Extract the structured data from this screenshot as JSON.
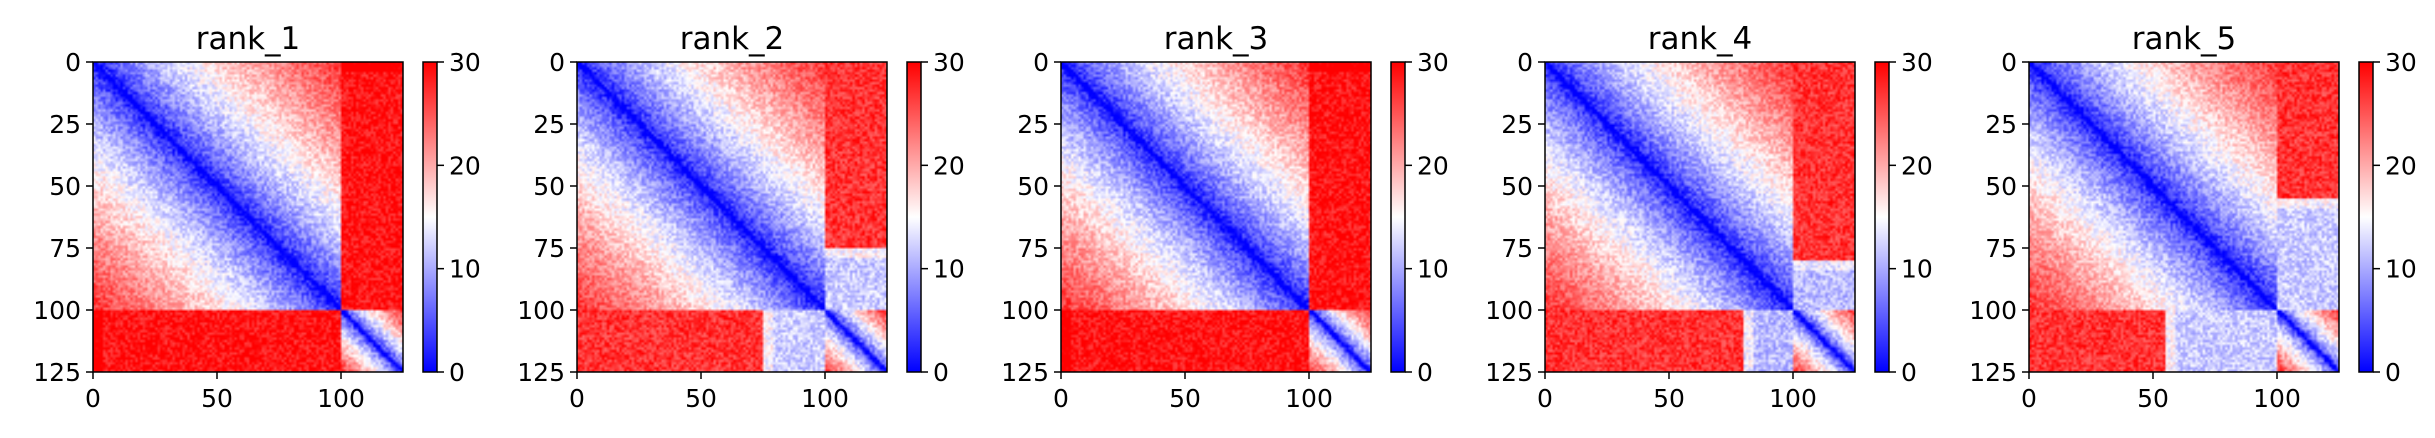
{
  "chart_data": [
    {
      "type": "heatmap",
      "title": "rank_1",
      "x": {
        "range": [
          0,
          125
        ],
        "ticks": [
          0,
          50,
          100
        ]
      },
      "y": {
        "range": [
          0,
          125
        ],
        "ticks": [
          0,
          25,
          50,
          75,
          100,
          125
        ],
        "inverted": true
      },
      "colorbar": {
        "range": [
          0,
          30
        ],
        "ticks": [
          0,
          10,
          20,
          30
        ],
        "colors": [
          "#0000ff",
          "#ffffff",
          "#ff0000"
        ]
      },
      "domains": [
        {
          "start": 0,
          "end": 100
        },
        {
          "start": 100,
          "end": 125
        }
      ],
      "partial_off_diagonal": {
        "rows": [
          100,
          125
        ],
        "cols": [
          0,
          100
        ],
        "value": 29
      }
    },
    {
      "type": "heatmap",
      "title": "rank_2",
      "x": {
        "range": [
          0,
          125
        ],
        "ticks": [
          0,
          50,
          100
        ]
      },
      "y": {
        "range": [
          0,
          125
        ],
        "ticks": [
          0,
          25,
          50,
          75,
          100,
          125
        ],
        "inverted": true
      },
      "colorbar": {
        "range": [
          0,
          30
        ],
        "ticks": [
          0,
          10,
          20,
          30
        ],
        "colors": [
          "#0000ff",
          "#ffffff",
          "#ff0000"
        ]
      },
      "domains": [
        {
          "start": 0,
          "end": 100
        },
        {
          "start": 100,
          "end": 125
        }
      ],
      "partial_off_diagonal": {
        "rows": [
          100,
          125
        ],
        "cols": [
          75,
          100
        ],
        "value": 12
      }
    },
    {
      "type": "heatmap",
      "title": "rank_3",
      "x": {
        "range": [
          0,
          125
        ],
        "ticks": [
          0,
          50,
          100
        ]
      },
      "y": {
        "range": [
          0,
          125
        ],
        "ticks": [
          0,
          25,
          50,
          75,
          100,
          125
        ],
        "inverted": true
      },
      "colorbar": {
        "range": [
          0,
          30
        ],
        "ticks": [
          0,
          10,
          20,
          30
        ],
        "colors": [
          "#0000ff",
          "#ffffff",
          "#ff0000"
        ]
      },
      "domains": [
        {
          "start": 0,
          "end": 100
        },
        {
          "start": 100,
          "end": 125
        }
      ],
      "partial_off_diagonal": {
        "rows": [
          100,
          125
        ],
        "cols": [
          0,
          100
        ],
        "value": 29
      }
    },
    {
      "type": "heatmap",
      "title": "rank_4",
      "x": {
        "range": [
          0,
          125
        ],
        "ticks": [
          0,
          50,
          100
        ]
      },
      "y": {
        "range": [
          0,
          125
        ],
        "ticks": [
          0,
          25,
          50,
          75,
          100,
          125
        ],
        "inverted": true
      },
      "colorbar": {
        "range": [
          0,
          30
        ],
        "ticks": [
          0,
          10,
          20,
          30
        ],
        "colors": [
          "#0000ff",
          "#ffffff",
          "#ff0000"
        ]
      },
      "domains": [
        {
          "start": 0,
          "end": 100
        },
        {
          "start": 100,
          "end": 125
        }
      ],
      "partial_off_diagonal": {
        "rows": [
          100,
          125
        ],
        "cols": [
          80,
          100
        ],
        "value": 11
      }
    },
    {
      "type": "heatmap",
      "title": "rank_5",
      "x": {
        "range": [
          0,
          125
        ],
        "ticks": [
          0,
          50,
          100
        ]
      },
      "y": {
        "range": [
          0,
          125
        ],
        "ticks": [
          0,
          25,
          50,
          75,
          100,
          125
        ],
        "inverted": true
      },
      "colorbar": {
        "range": [
          0,
          30
        ],
        "ticks": [
          0,
          10,
          20,
          30
        ],
        "colors": [
          "#0000ff",
          "#ffffff",
          "#ff0000"
        ]
      },
      "domains": [
        {
          "start": 0,
          "end": 100
        },
        {
          "start": 100,
          "end": 125
        }
      ],
      "partial_off_diagonal": {
        "rows": [
          100,
          125
        ],
        "cols": [
          55,
          100
        ],
        "value": 12
      }
    }
  ]
}
